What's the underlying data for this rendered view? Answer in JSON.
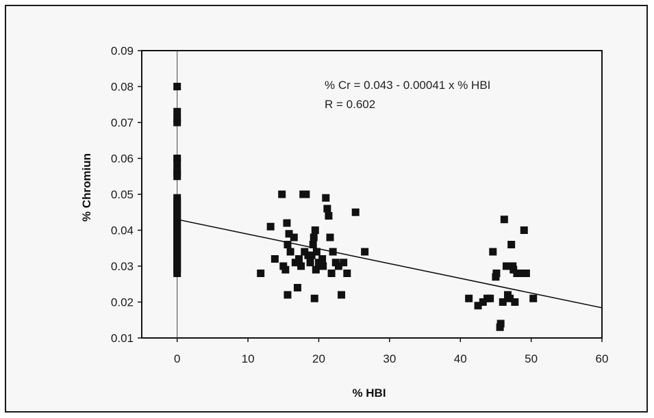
{
  "chart_data": {
    "type": "scatter",
    "xlabel": "% HBI",
    "ylabel": "% Chromiun",
    "xlim": [
      -5,
      60
    ],
    "ylim": [
      0.01,
      0.09
    ],
    "x_ticks": [
      0,
      10,
      20,
      30,
      40,
      50,
      60
    ],
    "y_ticks": [
      0.01,
      0.02,
      0.03,
      0.04,
      0.05,
      0.06,
      0.07,
      0.08,
      0.09
    ],
    "x_tick_labels": [
      "0",
      "10",
      "20",
      "30",
      "40",
      "50",
      "60"
    ],
    "y_tick_labels": [
      "0.01",
      "0.02",
      "0.03",
      "0.04",
      "0.05",
      "0.06",
      "0.07",
      "0.08",
      "0.09"
    ],
    "grid": false,
    "annotations": [
      "% Cr = 0.043 - 0.00041 x % HBI",
      "R = 0.602"
    ],
    "trendline": {
      "intercept": 0.043,
      "slope": -0.00041,
      "x_range": [
        0,
        60
      ]
    },
    "marker_color": "#111111",
    "points": [
      [
        0,
        0.08
      ],
      [
        0,
        0.073
      ],
      [
        0,
        0.071
      ],
      [
        0,
        0.07
      ],
      [
        0,
        0.06
      ],
      [
        0,
        0.059
      ],
      [
        0,
        0.057
      ],
      [
        0,
        0.056
      ],
      [
        0,
        0.055
      ],
      [
        0,
        0.049
      ],
      [
        0,
        0.048
      ],
      [
        0,
        0.047
      ],
      [
        0,
        0.046
      ],
      [
        0,
        0.045
      ],
      [
        0,
        0.044
      ],
      [
        0,
        0.043
      ],
      [
        0,
        0.042
      ],
      [
        0,
        0.041
      ],
      [
        0,
        0.04
      ],
      [
        0,
        0.039
      ],
      [
        0,
        0.038
      ],
      [
        0,
        0.037
      ],
      [
        0,
        0.036
      ],
      [
        0,
        0.035
      ],
      [
        0,
        0.034
      ],
      [
        0,
        0.033
      ],
      [
        0,
        0.032
      ],
      [
        0,
        0.031
      ],
      [
        0,
        0.03
      ],
      [
        0,
        0.029
      ],
      [
        0,
        0.028
      ],
      [
        11.8,
        0.028
      ],
      [
        13.2,
        0.041
      ],
      [
        13.8,
        0.032
      ],
      [
        14.8,
        0.05
      ],
      [
        15,
        0.03
      ],
      [
        15.3,
        0.029
      ],
      [
        15.5,
        0.042
      ],
      [
        15.6,
        0.036
      ],
      [
        15.6,
        0.022
      ],
      [
        15.8,
        0.039
      ],
      [
        16,
        0.034
      ],
      [
        16.5,
        0.038
      ],
      [
        16.7,
        0.031
      ],
      [
        17,
        0.024
      ],
      [
        17.2,
        0.032
      ],
      [
        17.5,
        0.03
      ],
      [
        17.8,
        0.05
      ],
      [
        18.2,
        0.05
      ],
      [
        18,
        0.034
      ],
      [
        18.5,
        0.033
      ],
      [
        18.8,
        0.031
      ],
      [
        19,
        0.033
      ],
      [
        19.2,
        0.036
      ],
      [
        19.3,
        0.038
      ],
      [
        19.4,
        0.021
      ],
      [
        19.5,
        0.04
      ],
      [
        19.6,
        0.029
      ],
      [
        19.7,
        0.034
      ],
      [
        20,
        0.031
      ],
      [
        20.2,
        0.03
      ],
      [
        20.5,
        0.032
      ],
      [
        20.6,
        0.03
      ],
      [
        21,
        0.049
      ],
      [
        21.2,
        0.046
      ],
      [
        21.4,
        0.044
      ],
      [
        21.6,
        0.038
      ],
      [
        21.8,
        0.028
      ],
      [
        22,
        0.034
      ],
      [
        22.4,
        0.031
      ],
      [
        22.8,
        0.03
      ],
      [
        23.2,
        0.022
      ],
      [
        23.5,
        0.031
      ],
      [
        24,
        0.028
      ],
      [
        25.2,
        0.045
      ],
      [
        26.5,
        0.034
      ],
      [
        41.2,
        0.021
      ],
      [
        42.5,
        0.019
      ],
      [
        43.2,
        0.02
      ],
      [
        43.8,
        0.021
      ],
      [
        44.2,
        0.021
      ],
      [
        44.6,
        0.034
      ],
      [
        45,
        0.027
      ],
      [
        45.1,
        0.028
      ],
      [
        45.6,
        0.013
      ],
      [
        45.7,
        0.014
      ],
      [
        46,
        0.02
      ],
      [
        46.2,
        0.043
      ],
      [
        46.5,
        0.03
      ],
      [
        46.7,
        0.022
      ],
      [
        47,
        0.021
      ],
      [
        47.2,
        0.036
      ],
      [
        47.4,
        0.03
      ],
      [
        47.5,
        0.029
      ],
      [
        47.7,
        0.02
      ],
      [
        48,
        0.028
      ],
      [
        48.6,
        0.028
      ],
      [
        49,
        0.04
      ],
      [
        49.3,
        0.028
      ],
      [
        50.3,
        0.021
      ]
    ]
  }
}
